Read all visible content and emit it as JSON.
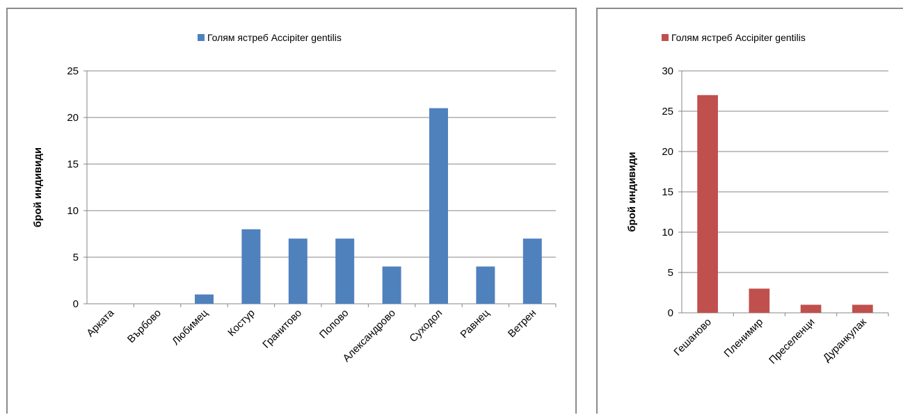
{
  "chart_data": [
    {
      "type": "bar",
      "legend": "Голям ястреб Accipiter gentilis",
      "legend_position": "top",
      "ylabel": "брой индивиди",
      "xlabel": "",
      "ylim": [
        0,
        25
      ],
      "yticks": [
        0,
        5,
        10,
        15,
        20,
        25
      ],
      "grid": true,
      "color": "#4f81bd",
      "categories": [
        "Арката",
        "Върбово",
        "Любимец",
        "Костур",
        "Гранитово",
        "Попово",
        "Александрово",
        "Суходол",
        "Равнец",
        "Ветрен"
      ],
      "series": [
        {
          "name": "Голям ястреб Accipiter gentilis",
          "values": [
            0,
            0,
            1,
            8,
            7,
            7,
            4,
            21,
            4,
            7
          ]
        }
      ]
    },
    {
      "type": "bar",
      "legend": "Голям ястреб Accipiter gentilis",
      "legend_position": "top",
      "ylabel": "брой индивиди",
      "xlabel": "",
      "ylim": [
        0,
        30
      ],
      "yticks": [
        0,
        5,
        10,
        15,
        20,
        25,
        30
      ],
      "grid": true,
      "color": "#c0504d",
      "categories": [
        "Гешаново",
        "Пленимир",
        "Преселенци",
        "Дуранкулак"
      ],
      "series": [
        {
          "name": "Голям ястреб Accipiter gentilis",
          "values": [
            27,
            3,
            1,
            1
          ]
        }
      ]
    }
  ]
}
